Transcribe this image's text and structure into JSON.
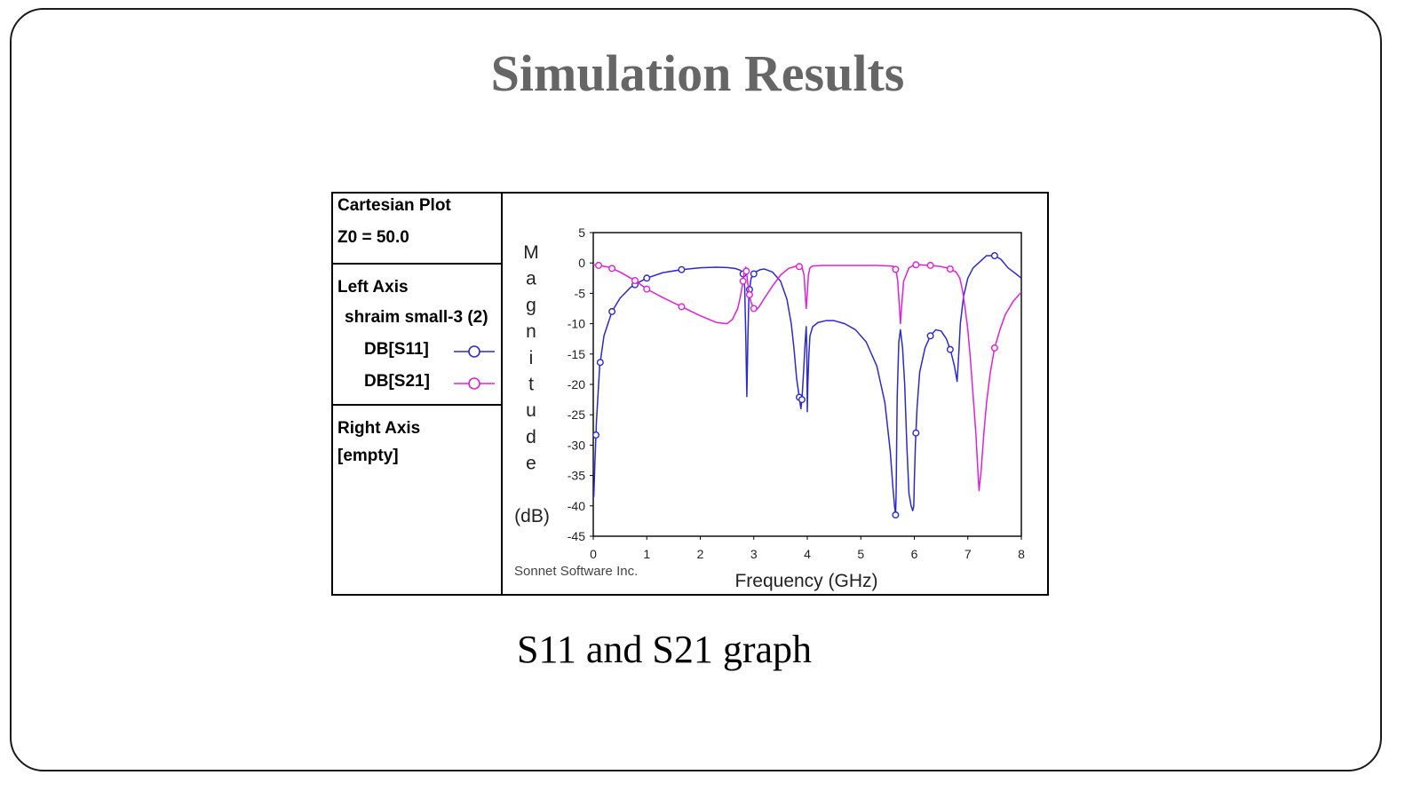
{
  "slide": {
    "title": "Simulation Results",
    "caption": "S11 and S21 graph"
  },
  "legend_panel": {
    "plot_type": "Cartesian Plot",
    "z0": "Z0 = 50.0",
    "left_axis_label": "Left Axis",
    "project_name": "shraim small-3 (2)",
    "series_labels": [
      "DB[S11]",
      "DB[S21]"
    ],
    "right_axis_label": "Right Axis",
    "right_axis_value": "[empty]"
  },
  "plot_footer": {
    "watermark": "Sonnet Software Inc."
  },
  "colors": {
    "s11": "#2a2ad0",
    "s21": "#e020d8",
    "frame": "#000000",
    "tick_text": "#222222"
  },
  "chart_data": {
    "type": "line",
    "title": "",
    "xlabel": "Frequency (GHz)",
    "ylabel": "Magnitude (dB)",
    "ylabel_chars": [
      "M",
      "a",
      "g",
      "n",
      "i",
      "t",
      "u",
      "d",
      "e"
    ],
    "ylabel_unit": "(dB)",
    "xlim": [
      0,
      8
    ],
    "ylim": [
      -45,
      5
    ],
    "xticks": [
      0,
      1,
      2,
      3,
      4,
      5,
      6,
      7,
      8
    ],
    "yticks": [
      5,
      0,
      -5,
      -10,
      -15,
      -20,
      -25,
      -30,
      -35,
      -40,
      -45
    ],
    "grid": false,
    "legend": "left-panel",
    "series": [
      {
        "name": "DB[S11]",
        "color": "#2a2ad0",
        "x": [
          0.01,
          0.03,
          0.06,
          0.12,
          0.2,
          0.35,
          0.5,
          0.7,
          0.85,
          1.0,
          1.3,
          1.65,
          2.0,
          2.3,
          2.5,
          2.65,
          2.75,
          2.8,
          2.83,
          2.85,
          2.86,
          2.87,
          2.89,
          2.91,
          2.95,
          3.0,
          3.05,
          3.12,
          3.2,
          3.35,
          3.5,
          3.62,
          3.7,
          3.75,
          3.8,
          3.84,
          3.88,
          3.9,
          3.93,
          3.96,
          3.98,
          3.99,
          4.0,
          4.01,
          4.03,
          4.05,
          4.1,
          4.2,
          4.35,
          4.5,
          4.7,
          4.9,
          5.1,
          5.3,
          5.45,
          5.55,
          5.6,
          5.63,
          5.65,
          5.66,
          5.68,
          5.71,
          5.74,
          5.78,
          5.82,
          5.86,
          5.9,
          5.94,
          5.97,
          5.99,
          6.0,
          6.02,
          6.05,
          6.1,
          6.2,
          6.3,
          6.4,
          6.5,
          6.6,
          6.68,
          6.75,
          6.8,
          6.83,
          6.86,
          6.92,
          7.0,
          7.1,
          7.2,
          7.35,
          7.5,
          7.62,
          7.75,
          7.9,
          8.0
        ],
        "y": [
          -38.5,
          -33,
          -26,
          -17,
          -12,
          -8,
          -5.8,
          -4,
          -3.2,
          -2.5,
          -1.6,
          -1.1,
          -0.8,
          -0.7,
          -0.75,
          -0.9,
          -1.2,
          -1.8,
          -4,
          -12,
          -17,
          -22,
          -12,
          -5,
          -2.5,
          -1.8,
          -1.4,
          -1.1,
          -1,
          -1.5,
          -3,
          -6,
          -10,
          -14,
          -19,
          -21.5,
          -24,
          -22.5,
          -18,
          -13,
          -10.5,
          -14,
          -24.5,
          -20,
          -15,
          -12,
          -10.5,
          -9.8,
          -9.5,
          -9.5,
          -10,
          -11,
          -13,
          -17,
          -23,
          -31,
          -37,
          -40,
          -41.5,
          -38,
          -22,
          -13,
          -11,
          -14,
          -20,
          -30,
          -38,
          -40,
          -40.8,
          -40,
          -36,
          -30,
          -24,
          -18,
          -14,
          -12,
          -11,
          -11.2,
          -12.5,
          -14.5,
          -17,
          -19.5,
          -15,
          -10,
          -5.5,
          -2.5,
          -0.8,
          0,
          1.2,
          1.2,
          0.6,
          -0.8,
          -1.8,
          -2.5
        ]
      },
      {
        "name": "DB[S21]",
        "color": "#e020d8",
        "x": [
          0.0,
          0.1,
          0.3,
          0.5,
          0.7,
          0.8,
          1.0,
          1.3,
          1.65,
          2.0,
          2.3,
          2.5,
          2.6,
          2.7,
          2.75,
          2.8,
          2.82,
          2.85,
          2.87,
          2.89,
          2.91,
          2.95,
          3.0,
          3.05,
          3.1,
          3.2,
          3.35,
          3.5,
          3.65,
          3.8,
          3.9,
          3.94,
          3.96,
          3.98,
          4.0,
          4.02,
          4.05,
          4.1,
          4.3,
          4.6,
          5.0,
          5.3,
          5.55,
          5.62,
          5.66,
          5.69,
          5.72,
          5.74,
          5.76,
          5.8,
          5.9,
          6.0,
          6.1,
          6.3,
          6.5,
          6.65,
          6.78,
          6.85,
          6.9,
          6.95,
          7.0,
          7.05,
          7.1,
          7.15,
          7.18,
          7.21,
          7.25,
          7.3,
          7.35,
          7.42,
          7.5,
          7.6,
          7.7,
          7.85,
          8.0
        ],
        "y": [
          -0.3,
          -0.4,
          -0.7,
          -1.5,
          -2.5,
          -3,
          -4.3,
          -5.7,
          -7.2,
          -8.7,
          -9.8,
          -10,
          -9.3,
          -7.5,
          -5.5,
          -3,
          -1.5,
          -0.7,
          -2,
          -3.5,
          -4.8,
          -6.5,
          -7.5,
          -7.7,
          -7.2,
          -5.8,
          -3.8,
          -2,
          -0.9,
          -0.5,
          -0.7,
          -2,
          -5,
          -7.5,
          -5,
          -2,
          -0.8,
          -0.5,
          -0.4,
          -0.4,
          -0.4,
          -0.4,
          -0.5,
          -0.6,
          -1.2,
          -3,
          -7,
          -10,
          -7.5,
          -3,
          -0.8,
          -0.3,
          -0.3,
          -0.4,
          -0.6,
          -0.9,
          -1.5,
          -2.5,
          -4.5,
          -7.5,
          -11,
          -16,
          -22,
          -28,
          -33,
          -37.5,
          -34,
          -28,
          -23,
          -18,
          -14,
          -11,
          -8.5,
          -6.3,
          -4.8
        ]
      }
    ],
    "s11_markers_x": [
      0.05,
      0.13,
      0.35,
      0.78,
      1.0,
      1.65,
      2.8,
      2.92,
      3.0,
      3.85,
      3.9,
      5.65,
      6.03,
      6.3,
      6.67,
      7.5
    ],
    "s21_markers_x": [
      0.1,
      0.35,
      0.78,
      1.0,
      1.65,
      2.8,
      2.86,
      2.92,
      3.0,
      3.85,
      5.65,
      6.03,
      6.3,
      6.67,
      7.5
    ]
  }
}
